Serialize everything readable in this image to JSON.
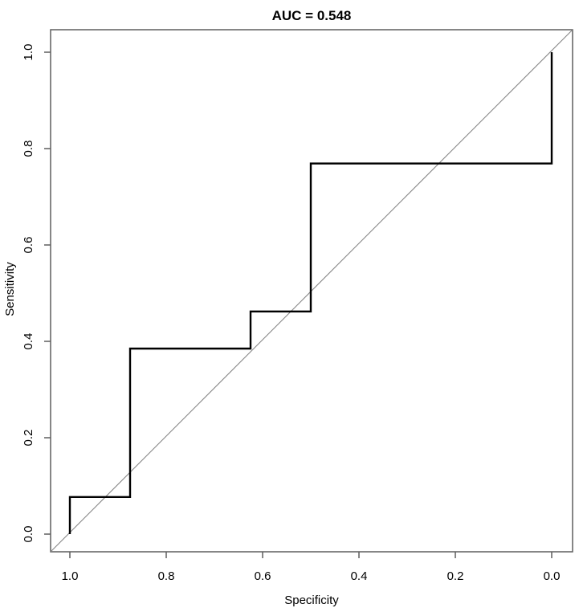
{
  "chart_data": {
    "type": "line",
    "subtype": "roc-step-curve",
    "title": "AUC = 0.548",
    "auc": 0.548,
    "xlabel": "Specificity",
    "ylabel": "Sensitivity",
    "x_axis_reversed": true,
    "xlim": [
      1.0,
      0.0
    ],
    "ylim": [
      0.0,
      1.0
    ],
    "x_ticks": [
      "1.0",
      "0.8",
      "0.6",
      "0.4",
      "0.2",
      "0.0"
    ],
    "x_tick_values": [
      1.0,
      0.8,
      0.6,
      0.4,
      0.2,
      0.0
    ],
    "y_ticks": [
      "0.0",
      "0.2",
      "0.4",
      "0.6",
      "0.8",
      "1.0"
    ],
    "y_tick_values": [
      0.0,
      0.2,
      0.4,
      0.6,
      0.8,
      1.0
    ],
    "grid": false,
    "legend": "none",
    "series": [
      {
        "name": "ROC curve",
        "points": [
          [
            1.0,
            0.0
          ],
          [
            1.0,
            0.077
          ],
          [
            0.875,
            0.077
          ],
          [
            0.875,
            0.385
          ],
          [
            0.625,
            0.385
          ],
          [
            0.625,
            0.462
          ],
          [
            0.5,
            0.462
          ],
          [
            0.5,
            0.769
          ],
          [
            0.0,
            0.769
          ],
          [
            0.0,
            1.0
          ]
        ],
        "color": "#000000",
        "line_width": 2.4
      }
    ],
    "reference_line": {
      "name": "chance diagonal",
      "from": [
        1.0,
        0.0
      ],
      "to": [
        0.0,
        1.0
      ],
      "color": "#808080",
      "line_width": 1
    },
    "colors": {
      "axis": "#5e5e5e",
      "text": "#000000",
      "background": "#ffffff",
      "curve": "#000000",
      "diagonal": "#808080"
    }
  }
}
